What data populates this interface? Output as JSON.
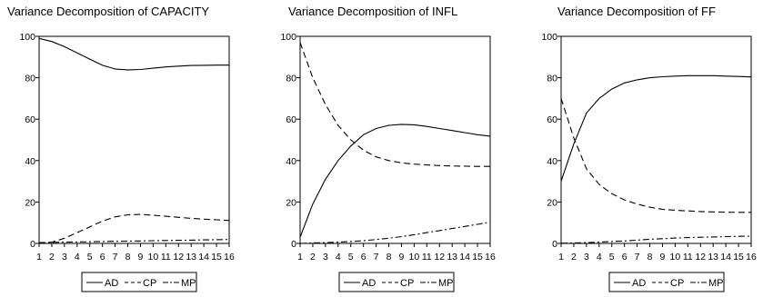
{
  "chart_data": [
    {
      "type": "line",
      "title": "Variance Decomposition of CAPACITY",
      "x": [
        1,
        2,
        3,
        4,
        5,
        6,
        7,
        8,
        9,
        10,
        11,
        12,
        13,
        14,
        15,
        16
      ],
      "xticks": [
        "1",
        "2",
        "3",
        "4",
        "5",
        "6",
        "7",
        "8",
        "9",
        "10",
        "11",
        "12",
        "13",
        "14",
        "15",
        "16"
      ],
      "yticks": [
        "0",
        "20",
        "40",
        "60",
        "80",
        "100"
      ],
      "ylim": [
        0,
        100
      ],
      "grid": false,
      "legend_placement": "bottom",
      "series": [
        {
          "name": "AD",
          "style": "solid",
          "values": [
            99,
            97.5,
            95,
            92,
            89,
            86,
            84.2,
            83.8,
            84,
            84.6,
            85.2,
            85.6,
            85.9,
            86,
            86.1,
            86.1
          ]
        },
        {
          "name": "CP",
          "style": "dashed",
          "values": [
            0,
            0.6,
            2.5,
            5.2,
            8,
            10.8,
            12.8,
            13.8,
            14,
            13.6,
            13.1,
            12.6,
            12.1,
            11.7,
            11.4,
            11.1
          ]
        },
        {
          "name": "MP",
          "style": "dashdot",
          "values": [
            0.4,
            0.5,
            0.6,
            0.7,
            0.8,
            0.9,
            1,
            1.1,
            1.2,
            1.3,
            1.4,
            1.5,
            1.6,
            1.7,
            1.8,
            1.9
          ]
        }
      ]
    },
    {
      "type": "line",
      "title": "Variance Decomposition of INFL",
      "x": [
        1,
        2,
        3,
        4,
        5,
        6,
        7,
        8,
        9,
        10,
        11,
        12,
        13,
        14,
        15,
        16
      ],
      "xticks": [
        "1",
        "2",
        "3",
        "4",
        "5",
        "6",
        "7",
        "8",
        "9",
        "10",
        "11",
        "12",
        "13",
        "14",
        "15",
        "16"
      ],
      "yticks": [
        "0",
        "20",
        "40",
        "60",
        "80",
        "100"
      ],
      "ylim": [
        0,
        100
      ],
      "grid": false,
      "legend_placement": "bottom",
      "series": [
        {
          "name": "AD",
          "style": "solid",
          "values": [
            3,
            19,
            31,
            40,
            47,
            52.5,
            55.5,
            57,
            57.5,
            57.3,
            56.5,
            55.5,
            54.5,
            53.5,
            52.5,
            51.8
          ]
        },
        {
          "name": "CP",
          "style": "dashed",
          "values": [
            97,
            80,
            67,
            57,
            50,
            45,
            41.8,
            40,
            38.9,
            38.3,
            37.9,
            37.6,
            37.4,
            37.3,
            37.2,
            37.2
          ]
        },
        {
          "name": "MP",
          "style": "dashdot",
          "values": [
            0,
            0.2,
            0.4,
            0.6,
            0.9,
            1.3,
            1.9,
            2.5,
            3.3,
            4.2,
            5.2,
            6.2,
            7.2,
            8.2,
            9.2,
            10.3
          ]
        }
      ]
    },
    {
      "type": "line",
      "title": "Variance Decomposition of FF",
      "x": [
        1,
        2,
        3,
        4,
        5,
        6,
        7,
        8,
        9,
        10,
        11,
        12,
        13,
        14,
        15,
        16
      ],
      "xticks": [
        "1",
        "2",
        "3",
        "4",
        "5",
        "6",
        "7",
        "8",
        "9",
        "10",
        "11",
        "12",
        "13",
        "14",
        "15",
        "16"
      ],
      "yticks": [
        "0",
        "20",
        "40",
        "60",
        "80",
        "100"
      ],
      "ylim": [
        0,
        100
      ],
      "grid": false,
      "legend_placement": "bottom",
      "series": [
        {
          "name": "AD",
          "style": "solid",
          "values": [
            30,
            48,
            63,
            70,
            74.5,
            77.5,
            79,
            80,
            80.5,
            80.8,
            81,
            81,
            81,
            80.8,
            80.6,
            80.4
          ]
        },
        {
          "name": "CP",
          "style": "dashed",
          "values": [
            70,
            51,
            36,
            28.5,
            24,
            21,
            19,
            17.5,
            16.5,
            16,
            15.7,
            15.4,
            15.2,
            15.1,
            15,
            15
          ]
        },
        {
          "name": "MP",
          "style": "dashdot",
          "values": [
            0.1,
            0.2,
            0.4,
            0.6,
            0.9,
            1.2,
            1.6,
            2,
            2.3,
            2.6,
            2.8,
            3,
            3.1,
            3.3,
            3.4,
            3.5
          ]
        }
      ]
    }
  ]
}
